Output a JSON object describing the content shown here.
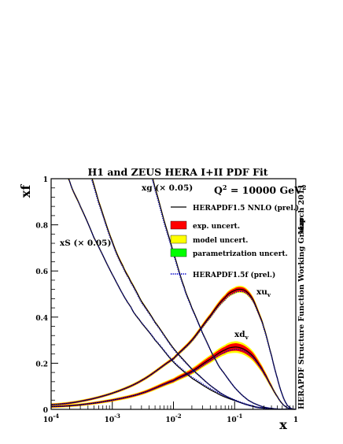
{
  "chart_data": {
    "type": "line",
    "title": "H1 and ZEUS HERA I+II PDF Fit",
    "q2_label": "Q",
    "q2_exp": "2",
    "q2_value": " = 10000 GeV",
    "q2_unit_exp": "2",
    "ylabel": "xf",
    "xlabel": "x",
    "side_date": "March 2011",
    "side_group": "HERAPDF Structure Function Working Group",
    "x_scale": "log",
    "xlim": [
      0.0001,
      1
    ],
    "ylim": [
      0,
      1
    ],
    "x_ticks": [
      {
        "base": "10",
        "exp": "-4",
        "value": 0.0001
      },
      {
        "base": "10",
        "exp": "-3",
        "value": 0.001
      },
      {
        "base": "10",
        "exp": "-2",
        "value": 0.01
      },
      {
        "base": "10",
        "exp": "-1",
        "value": 0.1
      },
      {
        "base": "1",
        "exp": "",
        "value": 1
      }
    ],
    "y_ticks": [
      {
        "label": "0",
        "value": 0
      },
      {
        "label": "0.2",
        "value": 0.2
      },
      {
        "label": "0.4",
        "value": 0.4
      },
      {
        "label": "0.6",
        "value": 0.6
      },
      {
        "label": "0.8",
        "value": 0.8
      },
      {
        "label": "1",
        "value": 1
      }
    ],
    "legend": {
      "placement": "top-right",
      "entries": [
        {
          "label": "HERAPDF1.5 NNLO (prel.)",
          "style": "line",
          "color": "#000000"
        },
        {
          "label": "exp. uncert.",
          "style": "box",
          "color": "#ff0000"
        },
        {
          "label": "model uncert.",
          "style": "box",
          "color": "#ffff00"
        },
        {
          "label": "parametrization uncert.",
          "style": "box",
          "color": "#00ff00"
        },
        {
          "label": "HERAPDF1.5f (prel.)",
          "style": "dotted",
          "color": "#0000cc"
        }
      ]
    },
    "series": [
      {
        "name": "xu",
        "name_sub": "v",
        "x": [
          0.0001,
          0.0003,
          0.001,
          0.003,
          0.01,
          0.02,
          0.04,
          0.07,
          0.1,
          0.13,
          0.16,
          0.2,
          0.25,
          0.3,
          0.4,
          0.5,
          0.6,
          0.7,
          0.8,
          0.9,
          1.0
        ],
        "central": [
          0.02,
          0.035,
          0.07,
          0.125,
          0.22,
          0.3,
          0.405,
          0.485,
          0.515,
          0.52,
          0.508,
          0.475,
          0.415,
          0.355,
          0.235,
          0.135,
          0.065,
          0.025,
          0.008,
          0.001,
          0.0
        ],
        "band_half_width": [
          0.006,
          0.006,
          0.006,
          0.007,
          0.008,
          0.01,
          0.012,
          0.014,
          0.015,
          0.015,
          0.014,
          0.013,
          0.012,
          0.01,
          0.008,
          0.006,
          0.004,
          0.002,
          0.001,
          0.0,
          0.0
        ],
        "alt": [
          0.02,
          0.035,
          0.07,
          0.125,
          0.218,
          0.296,
          0.398,
          0.475,
          0.505,
          0.511,
          0.5,
          0.468,
          0.41,
          0.35,
          0.232,
          0.133,
          0.064,
          0.025,
          0.008,
          0.001,
          0.0
        ]
      },
      {
        "name": "xd",
        "name_sub": "v",
        "x": [
          0.0001,
          0.0003,
          0.001,
          0.003,
          0.01,
          0.02,
          0.04,
          0.07,
          0.1,
          0.13,
          0.16,
          0.2,
          0.25,
          0.3,
          0.4,
          0.5,
          0.6,
          0.7,
          0.8,
          0.9,
          1.0
        ],
        "central": [
          0.012,
          0.02,
          0.04,
          0.07,
          0.125,
          0.165,
          0.218,
          0.258,
          0.27,
          0.265,
          0.252,
          0.23,
          0.195,
          0.16,
          0.1,
          0.055,
          0.025,
          0.01,
          0.003,
          0.0005,
          0.0
        ],
        "band_half_width": [
          0.006,
          0.006,
          0.007,
          0.008,
          0.011,
          0.014,
          0.018,
          0.022,
          0.025,
          0.025,
          0.024,
          0.022,
          0.018,
          0.015,
          0.01,
          0.006,
          0.004,
          0.002,
          0.001,
          0.0,
          0.0
        ],
        "alt": [
          0.012,
          0.02,
          0.04,
          0.07,
          0.122,
          0.16,
          0.21,
          0.248,
          0.26,
          0.257,
          0.245,
          0.224,
          0.19,
          0.157,
          0.099,
          0.055,
          0.025,
          0.01,
          0.003,
          0.0005,
          0.0
        ]
      },
      {
        "name": "xS (× 0.05)",
        "x": [
          0.0001,
          0.0002,
          0.0003,
          0.0005,
          0.001,
          0.002,
          0.003,
          0.005,
          0.01,
          0.02,
          0.05,
          0.1,
          0.2,
          0.3,
          0.5,
          0.7,
          1.0
        ],
        "central": [
          1.2,
          0.99,
          0.88,
          0.745,
          0.585,
          0.445,
          0.375,
          0.3,
          0.205,
          0.135,
          0.072,
          0.038,
          0.014,
          0.006,
          0.001,
          0.0002,
          0.0
        ],
        "band_half_width": [
          0.01,
          0.008,
          0.007,
          0.006,
          0.005,
          0.004,
          0.004,
          0.003,
          0.003,
          0.002,
          0.002,
          0.001,
          0.001,
          0.0,
          0.0,
          0.0,
          0.0
        ],
        "alt": [
          1.2,
          0.99,
          0.88,
          0.745,
          0.585,
          0.445,
          0.376,
          0.302,
          0.208,
          0.14,
          0.077,
          0.041,
          0.015,
          0.006,
          0.001,
          0.0002,
          0.0
        ]
      },
      {
        "name": "xg (× 0.05)",
        "x": [
          0.0003,
          0.0004,
          0.0006,
          0.001,
          0.0015,
          0.002,
          0.003,
          0.005,
          0.01,
          0.02,
          0.05,
          0.1,
          0.2,
          0.3,
          0.5,
          0.7,
          1.0
        ],
        "central": [
          1.2,
          1.06,
          0.9,
          0.728,
          0.62,
          0.555,
          0.468,
          0.378,
          0.265,
          0.175,
          0.085,
          0.04,
          0.013,
          0.005,
          0.0008,
          0.0001,
          0.0
        ],
        "band_half_width": [
          0.012,
          0.011,
          0.01,
          0.009,
          0.008,
          0.007,
          0.006,
          0.005,
          0.004,
          0.003,
          0.002,
          0.001,
          0.001,
          0.0,
          0.0,
          0.0,
          0.0
        ],
        "alt": [
          1.2,
          1.05,
          0.892,
          0.722,
          0.615,
          0.55,
          0.463,
          0.375,
          0.262,
          0.173,
          0.085,
          0.04,
          0.013,
          0.005,
          0.0008,
          0.0001,
          0.0
        ]
      },
      {
        "name": "xg (× 0.05)",
        "x": [
          0.003,
          0.004,
          0.005,
          0.007,
          0.01,
          0.015,
          0.02,
          0.03,
          0.05,
          0.07,
          0.1,
          0.15,
          0.2,
          0.3,
          0.5,
          0.7,
          1.0
        ],
        "central": [
          1.2,
          1.06,
          0.96,
          0.82,
          0.68,
          0.53,
          0.44,
          0.33,
          0.21,
          0.15,
          0.095,
          0.05,
          0.028,
          0.01,
          0.0015,
          0.0002,
          0.0
        ],
        "band_half_width": [
          0.012,
          0.011,
          0.01,
          0.009,
          0.008,
          0.007,
          0.006,
          0.005,
          0.004,
          0.003,
          0.002,
          0.002,
          0.001,
          0.001,
          0.0,
          0.0,
          0.0
        ],
        "alt": [
          1.2,
          1.05,
          0.95,
          0.81,
          0.672,
          0.524,
          0.436,
          0.328,
          0.21,
          0.15,
          0.095,
          0.05,
          0.028,
          0.01,
          0.0015,
          0.0002,
          0.0
        ]
      }
    ]
  }
}
